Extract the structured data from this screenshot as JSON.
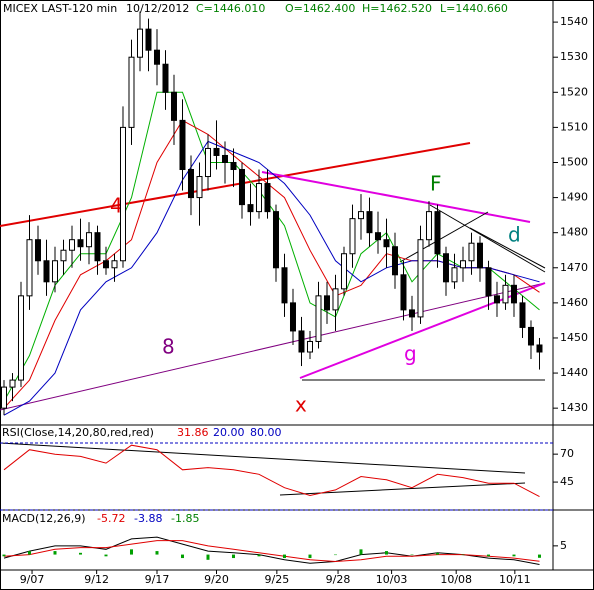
{
  "chart_data": [
    {
      "type": "candlestick",
      "title": "MICEX LAST-120 min",
      "header": [
        "10/12/2012",
        "C=1446.010",
        "O=1462.400",
        "H=1462.520",
        "L=1440.660"
      ],
      "annotations": [
        "4",
        "8",
        "F",
        "d",
        "g",
        "x"
      ],
      "open": [
        1430,
        1436,
        1438,
        1462,
        1478,
        1472,
        1466,
        1472,
        1475,
        1478,
        1476,
        1480,
        1472,
        1470,
        1472,
        1510,
        1530,
        1538,
        1532,
        1528,
        1520,
        1512,
        1498,
        1490,
        1496,
        1504,
        1502,
        1500,
        1498,
        1488,
        1486,
        1494,
        1486,
        1470,
        1460,
        1452,
        1446,
        1449,
        1462,
        1458,
        1464,
        1474,
        1484,
        1486,
        1480,
        1478,
        1476,
        1468,
        1458,
        1456,
        1478,
        1486,
        1474,
        1466,
        1470,
        1472,
        1477,
        1470,
        1462,
        1460,
        1465,
        1460,
        1453,
        1448
      ],
      "high": [
        1438,
        1440,
        1466,
        1485,
        1482,
        1478,
        1476,
        1478,
        1482,
        1484,
        1483,
        1482,
        1476,
        1474,
        1516,
        1535,
        1543,
        1541,
        1538,
        1532,
        1525,
        1518,
        1502,
        1500,
        1508,
        1512,
        1506,
        1504,
        1500,
        1494,
        1498,
        1498,
        1488,
        1474,
        1464,
        1456,
        1452,
        1466,
        1466,
        1468,
        1476,
        1488,
        1491,
        1490,
        1486,
        1484,
        1480,
        1472,
        1462,
        1482,
        1489,
        1488,
        1476,
        1474,
        1476,
        1480,
        1479,
        1472,
        1466,
        1468,
        1468,
        1462,
        1455,
        1450
      ],
      "low": [
        1428,
        1432,
        1436,
        1458,
        1468,
        1462,
        1463,
        1468,
        1470,
        1472,
        1471,
        1468,
        1468,
        1466,
        1470,
        1505,
        1526,
        1526,
        1522,
        1515,
        1505,
        1492,
        1485,
        1482,
        1492,
        1498,
        1494,
        1493,
        1484,
        1482,
        1484,
        1484,
        1466,
        1456,
        1448,
        1442,
        1444,
        1447,
        1454,
        1452,
        1462,
        1470,
        1478,
        1476,
        1474,
        1470,
        1464,
        1455,
        1452,
        1454,
        1476,
        1470,
        1462,
        1464,
        1466,
        1468,
        1466,
        1458,
        1456,
        1458,
        1456,
        1450,
        1444,
        1441
      ],
      "close": [
        1436,
        1438,
        1462,
        1478,
        1472,
        1466,
        1472,
        1475,
        1478,
        1476,
        1480,
        1472,
        1470,
        1472,
        1510,
        1530,
        1538,
        1532,
        1528,
        1520,
        1512,
        1498,
        1490,
        1496,
        1504,
        1502,
        1500,
        1498,
        1488,
        1486,
        1494,
        1486,
        1470,
        1460,
        1452,
        1446,
        1449,
        1462,
        1458,
        1464,
        1474,
        1484,
        1486,
        1480,
        1478,
        1476,
        1468,
        1458,
        1456,
        1478,
        1486,
        1474,
        1466,
        1470,
        1472,
        1477,
        1470,
        1462,
        1460,
        1465,
        1460,
        1453,
        1448,
        1446
      ],
      "candle_color": "#000000",
      "series": [
        {
          "name": "MA fast",
          "color": "#00b000",
          "x": [
            0,
            3,
            6,
            9,
            12,
            15,
            18,
            21,
            24,
            27,
            30,
            33,
            36,
            39,
            42,
            45,
            48,
            51,
            54,
            57,
            60,
            63
          ],
          "values": [
            1432,
            1445,
            1465,
            1474,
            1474,
            1490,
            1520,
            1520,
            1500,
            1500,
            1492,
            1482,
            1460,
            1456,
            1474,
            1480,
            1466,
            1474,
            1470,
            1470,
            1464,
            1458
          ]
        },
        {
          "name": "MA mid",
          "color": "#e00000",
          "x": [
            0,
            3,
            6,
            9,
            12,
            15,
            18,
            21,
            24,
            27,
            30,
            33,
            36,
            39,
            42,
            45,
            48,
            51,
            54,
            57,
            60,
            63
          ],
          "values": [
            1430,
            1438,
            1455,
            1468,
            1472,
            1478,
            1500,
            1512,
            1508,
            1502,
            1496,
            1490,
            1475,
            1462,
            1465,
            1474,
            1472,
            1472,
            1470,
            1470,
            1468,
            1463
          ]
        },
        {
          "name": "MA slow",
          "color": "#0000c0",
          "x": [
            0,
            3,
            6,
            9,
            12,
            15,
            18,
            21,
            24,
            27,
            30,
            33,
            36,
            39,
            42,
            45,
            48,
            51,
            54,
            57,
            60,
            63
          ],
          "values": [
            1428,
            1432,
            1440,
            1458,
            1466,
            1470,
            1480,
            1495,
            1506,
            1503,
            1500,
            1494,
            1485,
            1472,
            1466,
            1470,
            1472,
            1472,
            1470,
            1470,
            1468,
            1466
          ]
        }
      ],
      "xlim": [
        -0.47,
        64.59
      ],
      "ylim": [
        1425.2,
        1546.3
      ],
      "yticks": [
        1430,
        1440,
        1450,
        1460,
        1470,
        1480,
        1490,
        1500,
        1510,
        1520,
        1530,
        1540
      ]
    },
    {
      "type": "line",
      "title": "RSI(Close,14,20,80,red,red)",
      "header": [
        "31.86",
        "20.00",
        "80.00"
      ],
      "series": [
        {
          "name": "RSI",
          "color": "#e00000",
          "x": [
            0,
            3,
            6,
            9,
            12,
            15,
            18,
            21,
            24,
            27,
            30,
            33,
            36,
            39,
            42,
            45,
            48,
            51,
            54,
            57,
            60,
            63
          ],
          "values": [
            56,
            74,
            70,
            68,
            62,
            78,
            74,
            56,
            58,
            56,
            52,
            40,
            33,
            38,
            50,
            47,
            40,
            52,
            49,
            44,
            44,
            32
          ]
        }
      ],
      "levels": [
        20,
        80
      ],
      "level_color": "#0000c0",
      "xlim": [
        -0.47,
        64.59
      ],
      "ylim": [
        20,
        96.1
      ],
      "yticks": [
        45,
        70
      ]
    },
    {
      "type": "line",
      "title": "MACD(12,26,9)",
      "header": [
        "-5.72",
        "-3.88",
        "-1.85"
      ],
      "series": [
        {
          "name": "MACD",
          "color": "#000000",
          "x": [
            0,
            3,
            6,
            9,
            12,
            15,
            18,
            21,
            24,
            27,
            30,
            33,
            36,
            39,
            42,
            45,
            48,
            51,
            54,
            57,
            60,
            63
          ],
          "values": [
            -2,
            2,
            5,
            5,
            3,
            9,
            10,
            6,
            2,
            1,
            0,
            -3,
            -5,
            -4,
            0,
            1,
            -1,
            1,
            0,
            -2,
            -3,
            -5.72
          ]
        },
        {
          "name": "Signal",
          "color": "#e00000",
          "x": [
            0,
            3,
            6,
            9,
            12,
            15,
            18,
            21,
            24,
            27,
            30,
            33,
            36,
            39,
            42,
            45,
            48,
            51,
            54,
            57,
            60,
            63
          ],
          "values": [
            -1,
            0,
            3,
            4,
            4,
            6,
            8,
            8,
            5,
            3,
            1,
            -1,
            -3,
            -4,
            -3,
            -1,
            -1,
            0,
            0,
            -1,
            -2,
            -3.88
          ]
        },
        {
          "name": "Histogram",
          "style": "bar",
          "color": "#00a000",
          "x": [
            0,
            3,
            6,
            9,
            12,
            15,
            18,
            21,
            24,
            27,
            30,
            33,
            36,
            39,
            42,
            45,
            48,
            51,
            54,
            57,
            60,
            63
          ],
          "values": [
            -1,
            2,
            2,
            1,
            -1,
            3,
            2,
            -2,
            -3,
            -2,
            -1,
            -2,
            -2,
            0,
            3,
            2,
            0,
            1,
            0,
            -1,
            -1,
            -1.85
          ]
        }
      ],
      "xlim": [
        -0.47,
        64.59
      ],
      "ylim": [
        -10,
        25
      ],
      "yticks": [
        5
      ],
      "xticks": [
        {
          "value": 3.3,
          "label": "9/07"
        },
        {
          "value": 10.9,
          "label": "9/12"
        },
        {
          "value": 18,
          "label": "9/17"
        },
        {
          "value": 25,
          "label": "9/20"
        },
        {
          "value": 32.1,
          "label": "9/25"
        },
        {
          "value": 39.3,
          "label": "9/28"
        },
        {
          "value": 45.6,
          "label": "10/03"
        },
        {
          "value": 53.2,
          "label": "10/08"
        },
        {
          "value": 60.1,
          "label": "10/11"
        }
      ]
    }
  ]
}
